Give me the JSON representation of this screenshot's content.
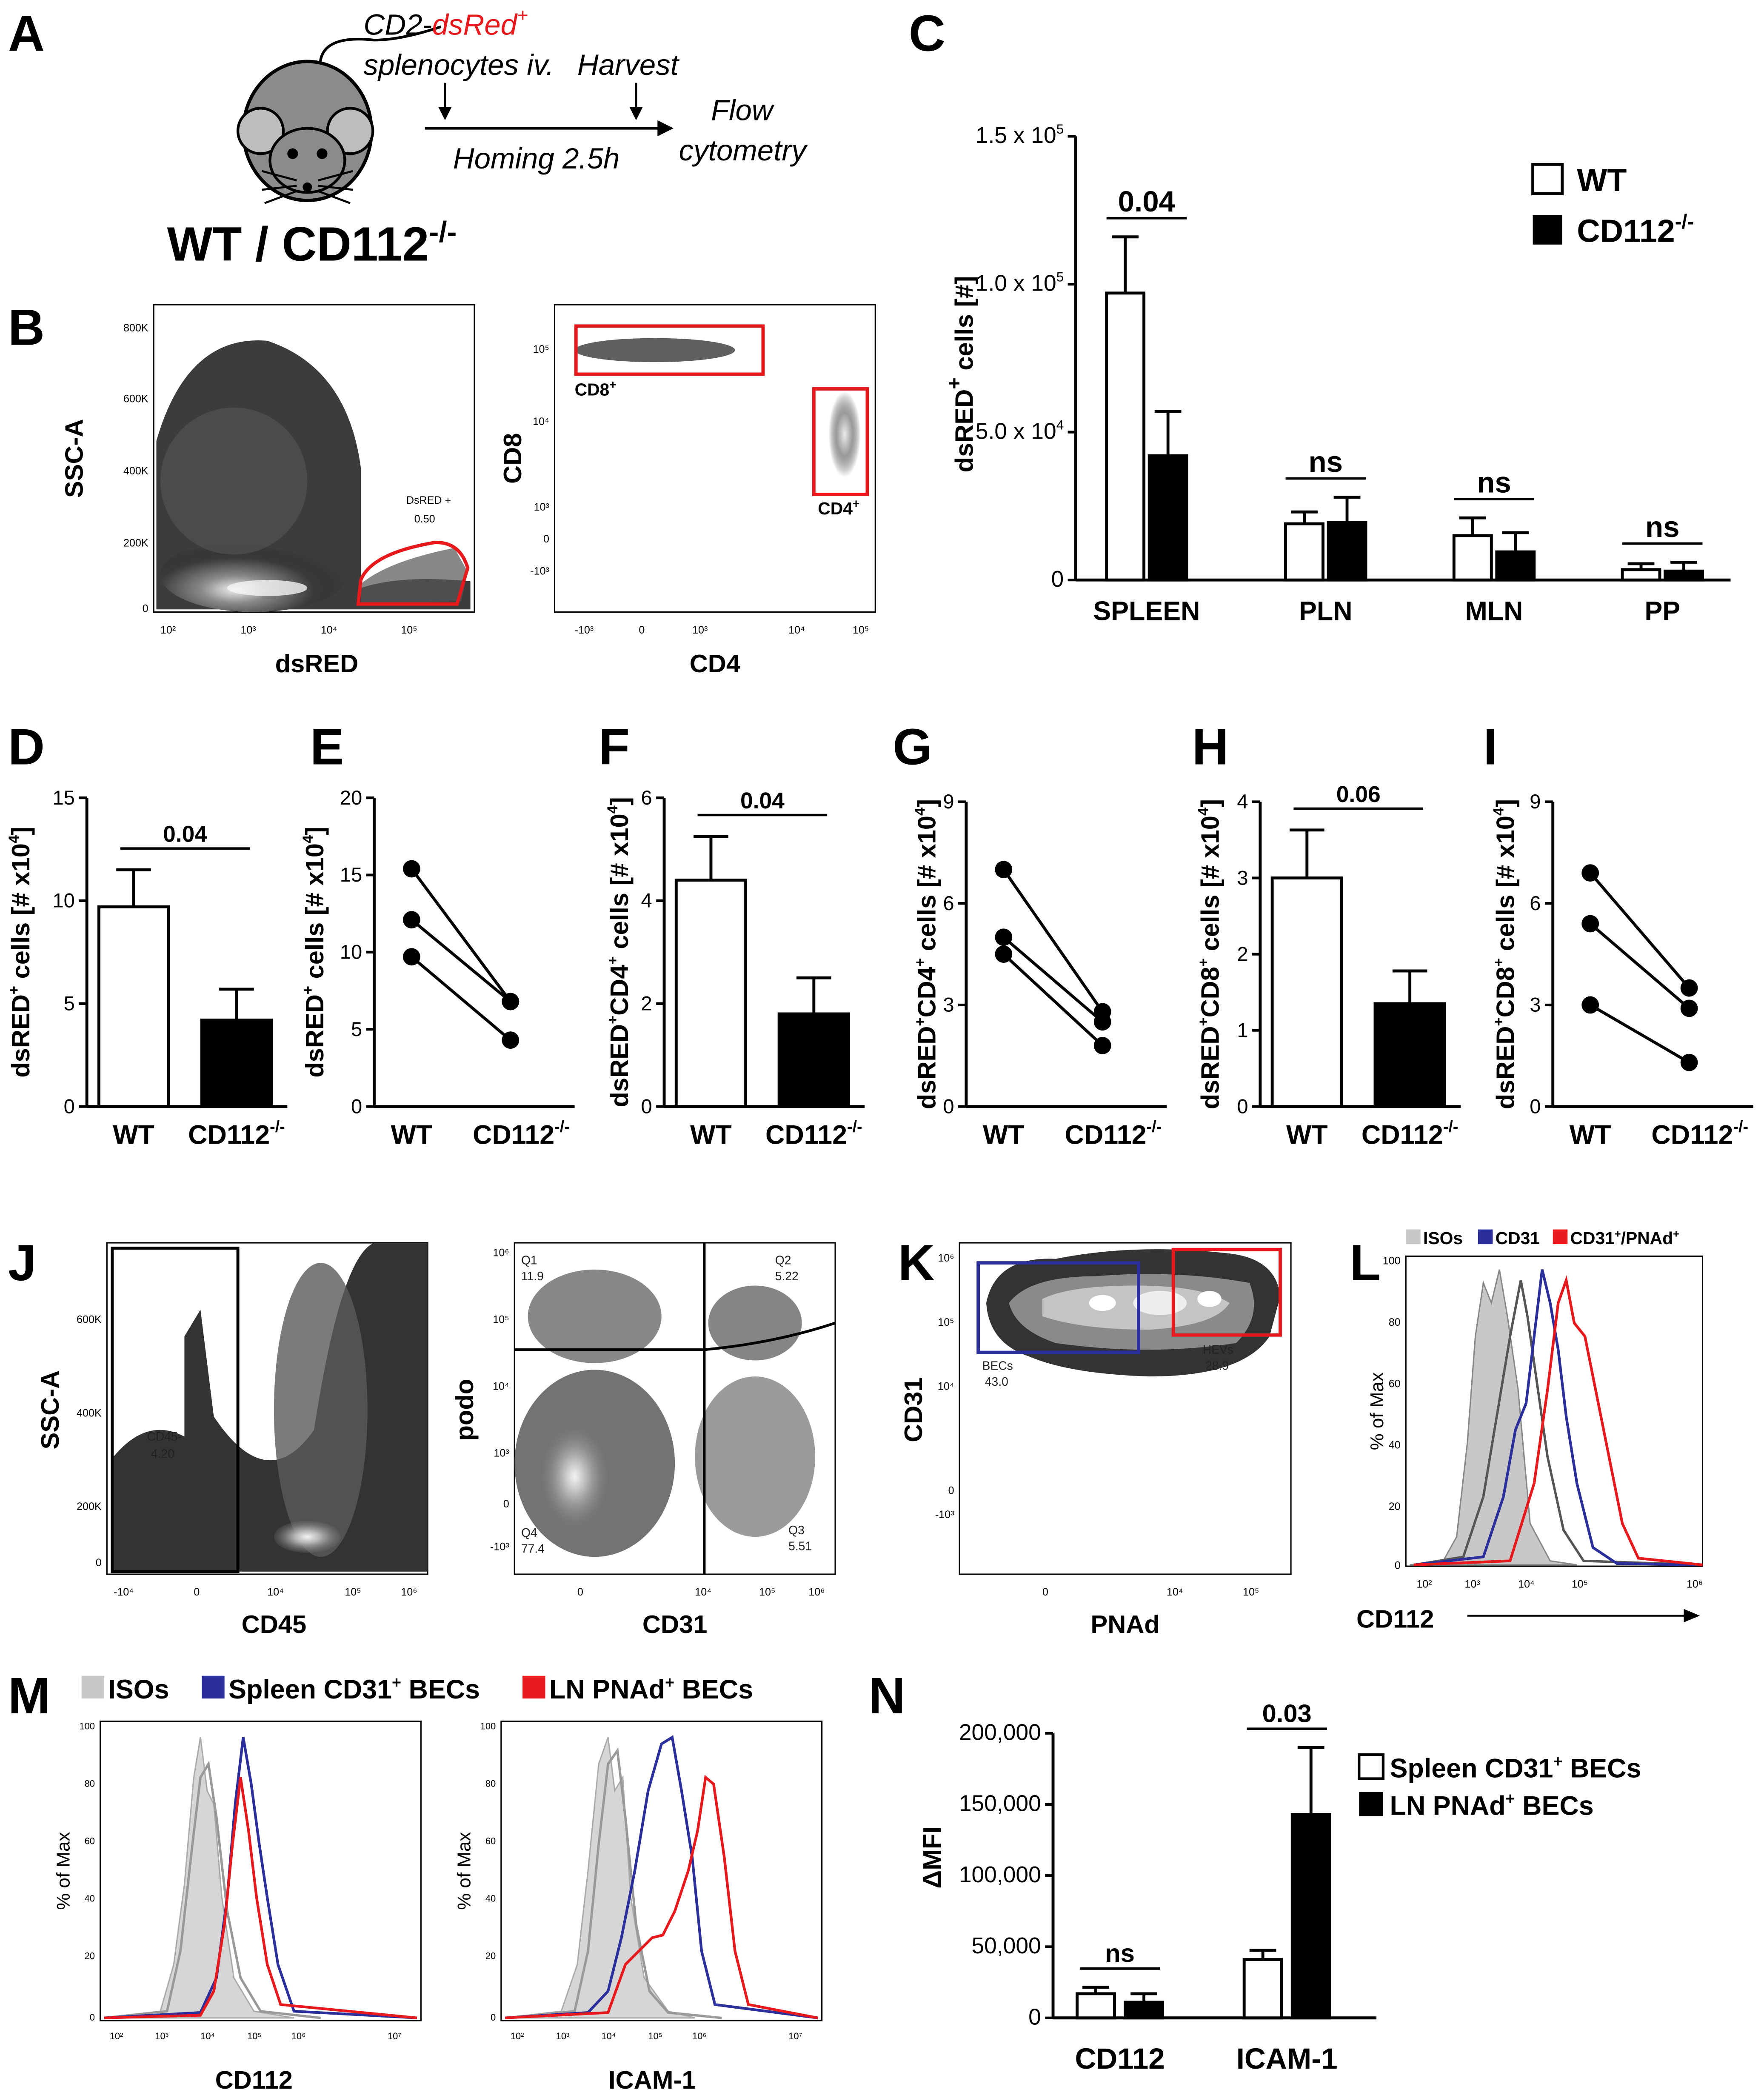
{
  "panels": {
    "A": {
      "label": "A",
      "genotype": "WT / CD112",
      "genotype_sup": "-/-",
      "cell_line1_a": "CD2-",
      "cell_line1_b": "dsRed",
      "cell_line1_c": "+",
      "cell_line2": "splenocytes iv.",
      "harvest": "Harvest",
      "homing": "Homing 2.5h",
      "flow1": "Flow",
      "flow2": "cytometry"
    },
    "B": {
      "label": "B",
      "plot1": {
        "ylabel": "SSC-A",
        "xlabel": "dsRED",
        "yticks": [
          "800K",
          "600K",
          "400K",
          "200K",
          "0"
        ],
        "gate_name": "DsRED +",
        "gate_value": "0.50"
      },
      "plot2": {
        "ylabel": "CD8",
        "xlabel": "CD4",
        "gate1": "CD8",
        "gate2": "CD4",
        "gate_sup": "+"
      }
    },
    "C": {
      "label": "C",
      "ylabel": "dsRED",
      "ylabel_sup": "+",
      "ylabel_rest": " cells [#]",
      "legend": {
        "wt": "WT",
        "ko": "CD112",
        "ko_sup": "-/-"
      }
    },
    "J": {
      "label": "J",
      "plot1": {
        "ylabel": "SSC-A",
        "xlabel": "CD45",
        "gate_name": "CD45-",
        "gate_value": "4.20"
      },
      "plot2": {
        "ylabel": "podo",
        "xlabel": "CD31",
        "q1": "Q1",
        "q1v": "11.9",
        "q2": "Q2",
        "q2v": "5.22",
        "q3": "Q3",
        "q3v": "5.51",
        "q4": "Q4",
        "q4v": "77.4"
      }
    },
    "K": {
      "label": "K",
      "ylabel": "CD31",
      "xlabel": "PNAd",
      "becs": "BECs",
      "becs_v": "43.0",
      "hevs": "HEVs",
      "hevs_v": "28.9"
    },
    "L": {
      "label": "L",
      "legend": [
        "ISOs",
        "CD31",
        "CD31",
        "/PNAd"
      ],
      "legend_sup": "+",
      "ylabel": "% of Max",
      "xlabel": "CD112"
    },
    "M": {
      "label": "M",
      "legend": [
        "ISOs",
        "Spleen CD31",
        "BECs",
        "LN PNAd",
        "BECs"
      ],
      "legend_sup": "+",
      "ylabel": "% of Max",
      "xlabel1": "CD112",
      "xlabel2": "ICAM-1"
    },
    "N": {
      "label": "N",
      "ylabel": "ΔMFI",
      "legend": {
        "wt": "Spleen CD31",
        "wt_rest": " BECs",
        "ko": "LN PNAd",
        "ko_rest": " BECs",
        "sup": "+"
      }
    }
  },
  "colors": {
    "iso": "#c8c8c8",
    "cd31": "#2b2f9b",
    "pnad": "#e8191c",
    "gate": "#e8191c",
    "dark": "#000000"
  },
  "chart_data": [
    {
      "id": "C",
      "type": "bar",
      "title": "",
      "categories": [
        "SPLEEN",
        "PLN",
        "MLN",
        "PP"
      ],
      "series": [
        {
          "name": "WT",
          "values": [
            97000,
            19000,
            15000,
            3500
          ],
          "errors": [
            19000,
            4000,
            6000,
            2000
          ]
        },
        {
          "name": "CD112-/-",
          "values": [
            42000,
            19500,
            9500,
            3000
          ],
          "errors": [
            15000,
            8500,
            6500,
            3000
          ]
        }
      ],
      "ylim": [
        0,
        150000
      ],
      "yticks": [
        "0",
        "5.0 x 10",
        "1.0 x 10",
        "1.5 x 10"
      ],
      "ytick_sup": [
        "",
        "4",
        "5",
        "5"
      ],
      "significance": [
        "0.04",
        "ns",
        "ns",
        "ns"
      ]
    },
    {
      "id": "D",
      "type": "bar",
      "categories": [
        "WT",
        "CD112"
      ],
      "cat_sup": [
        "",
        "-/-"
      ],
      "values": [
        9.7,
        4.2
      ],
      "errors": [
        1.8,
        1.5
      ],
      "ylim": [
        0,
        15
      ],
      "yticks": [
        "0",
        "5",
        "10",
        "15"
      ],
      "significance": "0.04",
      "ylabel": "dsRED",
      "ylabel_sup": "+",
      "ylabel_rest": " cells [# x10",
      "ylabel_sup2": "4",
      "ylabel_end": "]"
    },
    {
      "id": "E",
      "type": "scatter",
      "categories": [
        "WT",
        "CD112"
      ],
      "cat_sup": [
        "",
        "-/-"
      ],
      "pairs": [
        [
          15.4,
          6.8
        ],
        [
          12.1,
          6.8
        ],
        [
          9.7,
          4.3
        ]
      ],
      "ylim": [
        0,
        20
      ],
      "yticks": [
        "0",
        "5",
        "10",
        "15",
        "20"
      ],
      "ylabel": "dsRED",
      "ylabel_sup": "+",
      "ylabel_rest": " cells [# x10",
      "ylabel_sup2": "4",
      "ylabel_end": "]"
    },
    {
      "id": "F",
      "type": "bar",
      "categories": [
        "WT",
        "CD112"
      ],
      "cat_sup": [
        "",
        "-/-"
      ],
      "values": [
        4.4,
        1.8
      ],
      "errors": [
        0.85,
        0.7
      ],
      "ylim": [
        0,
        6
      ],
      "yticks": [
        "0",
        "2",
        "4",
        "6"
      ],
      "significance": "0.04",
      "ylabel": "dsRED",
      "ylabel_sup": "+",
      "ylabel_rest": "CD4",
      "ylabel_sup3": "+",
      "ylabel_end2": " cells [# x10",
      "ylabel_sup2": "4",
      "ylabel_end": "]"
    },
    {
      "id": "G",
      "type": "scatter",
      "categories": [
        "WT",
        "CD112"
      ],
      "cat_sup": [
        "",
        "-/-"
      ],
      "pairs": [
        [
          7.0,
          2.8
        ],
        [
          5.0,
          2.5
        ],
        [
          4.5,
          1.8
        ]
      ],
      "ylim": [
        0,
        9
      ],
      "yticks": [
        "0",
        "3",
        "6",
        "9"
      ],
      "ylabel": "dsRED",
      "ylabel_sup": "+",
      "ylabel_rest": "CD4",
      "ylabel_sup3": "+",
      "ylabel_end2": " cells [# x10",
      "ylabel_sup2": "4",
      "ylabel_end": "]"
    },
    {
      "id": "H",
      "type": "bar",
      "categories": [
        "WT",
        "CD112"
      ],
      "cat_sup": [
        "",
        "-/-"
      ],
      "values": [
        3.0,
        1.35
      ],
      "errors": [
        0.63,
        0.43
      ],
      "ylim": [
        0,
        4
      ],
      "yticks": [
        "0",
        "1",
        "2",
        "3",
        "4"
      ],
      "significance": "0.06",
      "ylabel": "dsRED",
      "ylabel_sup": "+",
      "ylabel_rest": "CD8",
      "ylabel_sup3": "+",
      "ylabel_end2": " cells [# x10",
      "ylabel_sup2": "4",
      "ylabel_end": "]"
    },
    {
      "id": "I",
      "type": "scatter",
      "categories": [
        "WT",
        "CD112"
      ],
      "cat_sup": [
        "",
        "-/-"
      ],
      "pairs": [
        [
          6.9,
          3.5
        ],
        [
          5.4,
          2.9
        ],
        [
          3.0,
          1.3
        ]
      ],
      "ylim": [
        0,
        9
      ],
      "yticks": [
        "0",
        "3",
        "6",
        "9"
      ],
      "ylabel": "dsRED",
      "ylabel_sup": "+",
      "ylabel_rest": "CD8",
      "ylabel_sup3": "+",
      "ylabel_end2": " cells [# x10",
      "ylabel_sup2": "4",
      "ylabel_end": "]"
    },
    {
      "id": "N",
      "type": "bar",
      "categories": [
        "CD112",
        "ICAM-1"
      ],
      "series": [
        {
          "name": "Spleen CD31+ BECs",
          "values": [
            17000,
            41000
          ],
          "errors": [
            4500,
            6500
          ]
        },
        {
          "name": "LN PNAd+ BECs",
          "values": [
            11000,
            143000
          ],
          "errors": [
            6000,
            47000
          ]
        }
      ],
      "ylim": [
        0,
        200000
      ],
      "yticks": [
        "0",
        "50,000",
        "100,000",
        "150,000",
        "200,000"
      ],
      "significance": [
        "ns",
        "0.03"
      ]
    }
  ]
}
